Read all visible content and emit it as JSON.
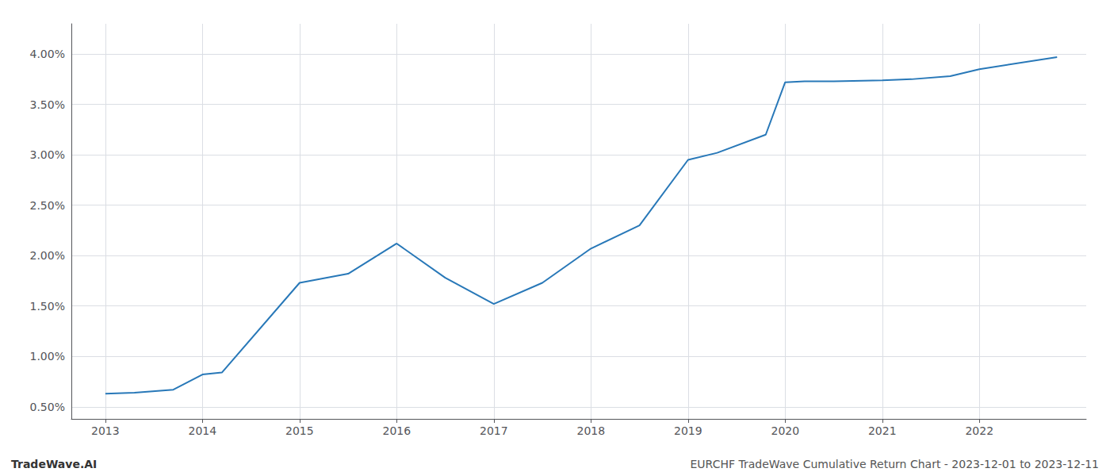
{
  "chart_data": {
    "type": "line",
    "x": [
      2013,
      2013.3,
      2013.7,
      2014,
      2014.2,
      2015,
      2015.5,
      2016,
      2016.5,
      2017,
      2017.5,
      2018,
      2018.5,
      2019,
      2019.3,
      2019.8,
      2020,
      2020.2,
      2020.5,
      2021,
      2021.3,
      2021.7,
      2022,
      2022.8
    ],
    "values": [
      0.63,
      0.64,
      0.67,
      0.82,
      0.84,
      1.73,
      1.82,
      2.12,
      1.78,
      1.52,
      1.73,
      2.07,
      2.3,
      2.95,
      3.02,
      3.2,
      3.72,
      3.73,
      3.73,
      3.74,
      3.75,
      3.78,
      3.85,
      3.97
    ],
    "color": "#2878b8",
    "xlim": [
      2012.65,
      2023.1
    ],
    "xticks": [
      2013,
      2014,
      2015,
      2016,
      2017,
      2018,
      2019,
      2020,
      2021,
      2022
    ],
    "ylim": [
      0.38,
      4.3
    ],
    "yticks": [
      {
        "value": 0.5,
        "label": "0.50%"
      },
      {
        "value": 1.0,
        "label": "1.00%"
      },
      {
        "value": 1.5,
        "label": "1.50%"
      },
      {
        "value": 2.0,
        "label": "2.00%"
      },
      {
        "value": 2.5,
        "label": "2.50%"
      },
      {
        "value": 3.0,
        "label": "3.00%"
      },
      {
        "value": 3.5,
        "label": "3.50%"
      },
      {
        "value": 4.0,
        "label": "4.00%"
      }
    ],
    "grid": true,
    "annotations": [
      "TradeWave.AI",
      "EURCHF TradeWave Cumulative Return Chart - 2023-12-01 to 2023-12-11"
    ]
  }
}
